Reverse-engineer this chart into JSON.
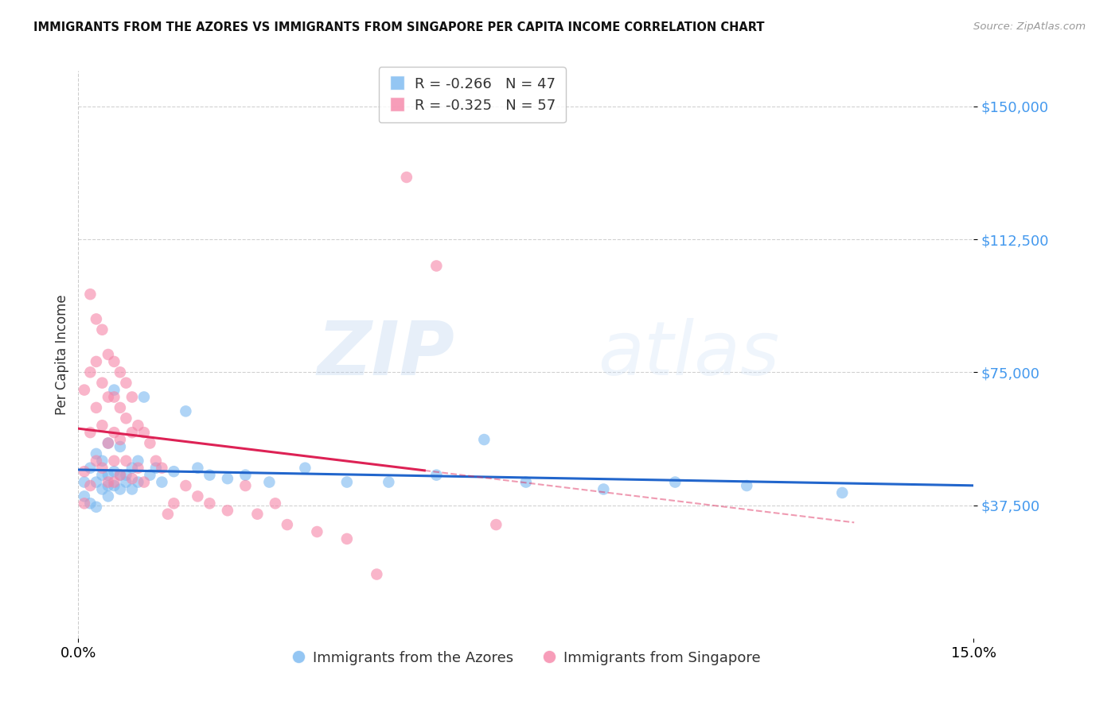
{
  "title": "IMMIGRANTS FROM THE AZORES VS IMMIGRANTS FROM SINGAPORE PER CAPITA INCOME CORRELATION CHART",
  "source": "Source: ZipAtlas.com",
  "ylabel": "Per Capita Income",
  "ytick_vals": [
    37500,
    75000,
    112500,
    150000
  ],
  "ytick_labels": [
    "$37,500",
    "$75,000",
    "$112,500",
    "$150,000"
  ],
  "xlim": [
    0.0,
    0.15
  ],
  "ylim": [
    0,
    160000
  ],
  "legend_line1_R": "R = ",
  "legend_line1_Rval": "-0.266",
  "legend_line1_N": "   N = ",
  "legend_line1_Nval": "47",
  "legend_line2_R": "R = ",
  "legend_line2_Rval": "-0.325",
  "legend_line2_N": "   N = ",
  "legend_line2_Nval": "57",
  "color_azores": "#7ab8f0",
  "color_singapore": "#f585a8",
  "color_trend_azores": "#2266cc",
  "color_trend_singapore": "#dd2255",
  "watermark_zip": "ZIP",
  "watermark_atlas": "atlas",
  "legend_label_azores": "Immigrants from the Azores",
  "legend_label_singapore": "Immigrants from Singapore",
  "azores_x": [
    0.001,
    0.001,
    0.002,
    0.002,
    0.003,
    0.003,
    0.003,
    0.004,
    0.004,
    0.004,
    0.005,
    0.005,
    0.005,
    0.005,
    0.006,
    0.006,
    0.006,
    0.007,
    0.007,
    0.007,
    0.008,
    0.008,
    0.009,
    0.009,
    0.01,
    0.01,
    0.011,
    0.012,
    0.013,
    0.014,
    0.016,
    0.018,
    0.02,
    0.022,
    0.025,
    0.028,
    0.032,
    0.038,
    0.045,
    0.052,
    0.06,
    0.068,
    0.075,
    0.088,
    0.1,
    0.112,
    0.128
  ],
  "azores_y": [
    44000,
    40000,
    48000,
    38000,
    52000,
    44000,
    37000,
    50000,
    46000,
    42000,
    55000,
    46000,
    43000,
    40000,
    70000,
    47000,
    43000,
    54000,
    46000,
    42000,
    46000,
    44000,
    48000,
    42000,
    50000,
    44000,
    68000,
    46000,
    48000,
    44000,
    47000,
    64000,
    48000,
    46000,
    45000,
    46000,
    44000,
    48000,
    44000,
    44000,
    46000,
    56000,
    44000,
    42000,
    44000,
    43000,
    41000
  ],
  "singapore_x": [
    0.001,
    0.001,
    0.001,
    0.002,
    0.002,
    0.002,
    0.002,
    0.003,
    0.003,
    0.003,
    0.003,
    0.004,
    0.004,
    0.004,
    0.004,
    0.005,
    0.005,
    0.005,
    0.005,
    0.006,
    0.006,
    0.006,
    0.006,
    0.006,
    0.007,
    0.007,
    0.007,
    0.007,
    0.008,
    0.008,
    0.008,
    0.009,
    0.009,
    0.009,
    0.01,
    0.01,
    0.011,
    0.011,
    0.012,
    0.013,
    0.014,
    0.015,
    0.016,
    0.018,
    0.02,
    0.022,
    0.025,
    0.028,
    0.03,
    0.033,
    0.035,
    0.04,
    0.045,
    0.05,
    0.055,
    0.06,
    0.07
  ],
  "singapore_y": [
    70000,
    47000,
    38000,
    97000,
    75000,
    58000,
    43000,
    90000,
    78000,
    65000,
    50000,
    87000,
    72000,
    60000,
    48000,
    80000,
    68000,
    55000,
    44000,
    78000,
    68000,
    58000,
    50000,
    44000,
    75000,
    65000,
    56000,
    46000,
    72000,
    62000,
    50000,
    68000,
    58000,
    45000,
    60000,
    48000,
    58000,
    44000,
    55000,
    50000,
    48000,
    35000,
    38000,
    43000,
    40000,
    38000,
    36000,
    43000,
    35000,
    38000,
    32000,
    30000,
    28000,
    18000,
    130000,
    105000,
    32000
  ],
  "singapore_trend_solid_end": 0.058,
  "singapore_trend_dash_end": 0.13,
  "azores_trend_start": 0.0,
  "azores_trend_end": 0.15
}
